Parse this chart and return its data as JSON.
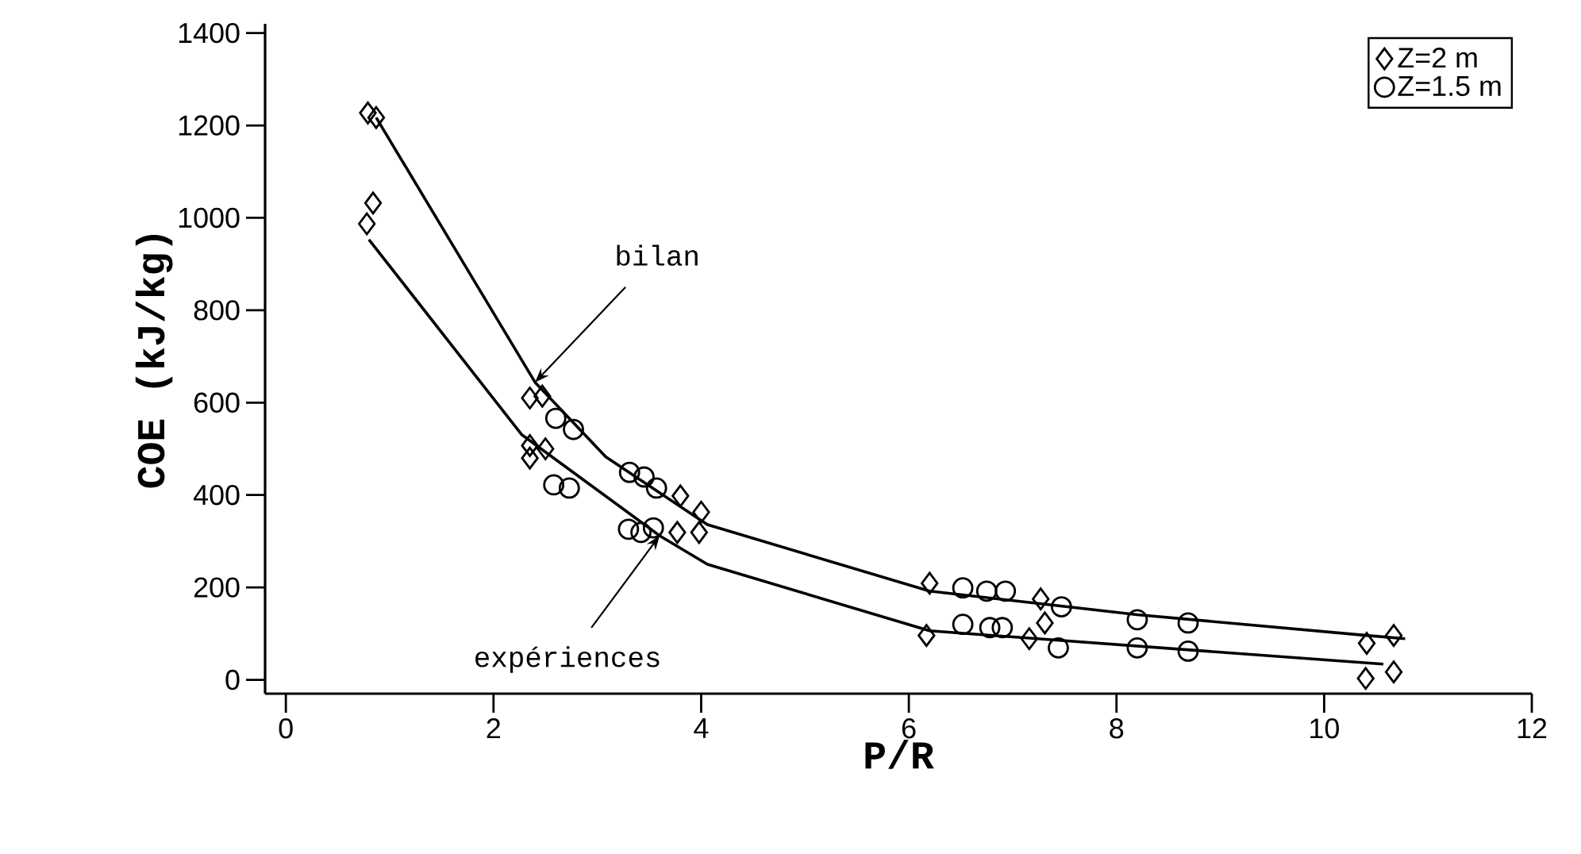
{
  "chart_data": {
    "type": "scatter",
    "xlabel": "P/R",
    "ylabel": "COE   (kJ/kg)",
    "xlim": [
      -0.2,
      12
    ],
    "ylim": [
      -30,
      1420
    ],
    "xticks": [
      0,
      2,
      4,
      6,
      8,
      10,
      12
    ],
    "yticks": [
      0,
      200,
      400,
      600,
      800,
      1000,
      1200,
      1400
    ],
    "legend": "top right",
    "grid": false,
    "series": [
      {
        "name": "Z=2 m",
        "color": "#000000",
        "marker": "diamond",
        "x": [
          0.79,
          0.87,
          0.84,
          0.78,
          2.35,
          2.47,
          2.35,
          2.35,
          2.5,
          3.8,
          4.0,
          3.77,
          3.98,
          6.2,
          6.17,
          7.27,
          7.31,
          7.16,
          10.41,
          10.67,
          10.4,
          10.67
        ],
        "values": [
          1227,
          1217,
          1032,
          987,
          610,
          614,
          507,
          480,
          500,
          398,
          363,
          319,
          319,
          209,
          96,
          175,
          123,
          89,
          79,
          96,
          3,
          17
        ]
      },
      {
        "name": "Z=1.5 m",
        "color": "#000000",
        "marker": "circle",
        "x": [
          2.6,
          2.77,
          2.58,
          2.73,
          3.31,
          3.45,
          3.57,
          3.3,
          3.42,
          3.54,
          6.52,
          6.75,
          6.93,
          6.52,
          6.78,
          6.9,
          7.47,
          7.44,
          8.2,
          8.2,
          8.69,
          8.69
        ],
        "values": [
          566,
          542,
          422,
          415,
          449,
          439,
          415,
          326,
          319,
          329,
          199,
          192,
          192,
          120,
          113,
          113,
          158,
          69,
          130,
          69,
          123,
          62
        ]
      },
      {
        "type": "line",
        "color": "#000000",
        "marker": "none",
        "x": [
          0.87,
          2.4,
          3.08,
          4.06,
          6.2,
          8.2,
          10.41,
          10.78
        ],
        "values": [
          1217,
          644,
          483,
          336,
          192,
          141,
          96,
          89
        ]
      },
      {
        "type": "line",
        "color": "#000000",
        "marker": "none",
        "x": [
          0.8,
          2.27,
          3.6,
          4.06,
          6.2,
          10.57
        ],
        "values": [
          953,
          531,
          312,
          250,
          106,
          34
        ]
      }
    ],
    "annotations": [
      {
        "text": "bilan",
        "x": 2.4,
        "y": 644
      },
      {
        "text": "expériences",
        "x": 3.6,
        "y": 312
      }
    ]
  }
}
